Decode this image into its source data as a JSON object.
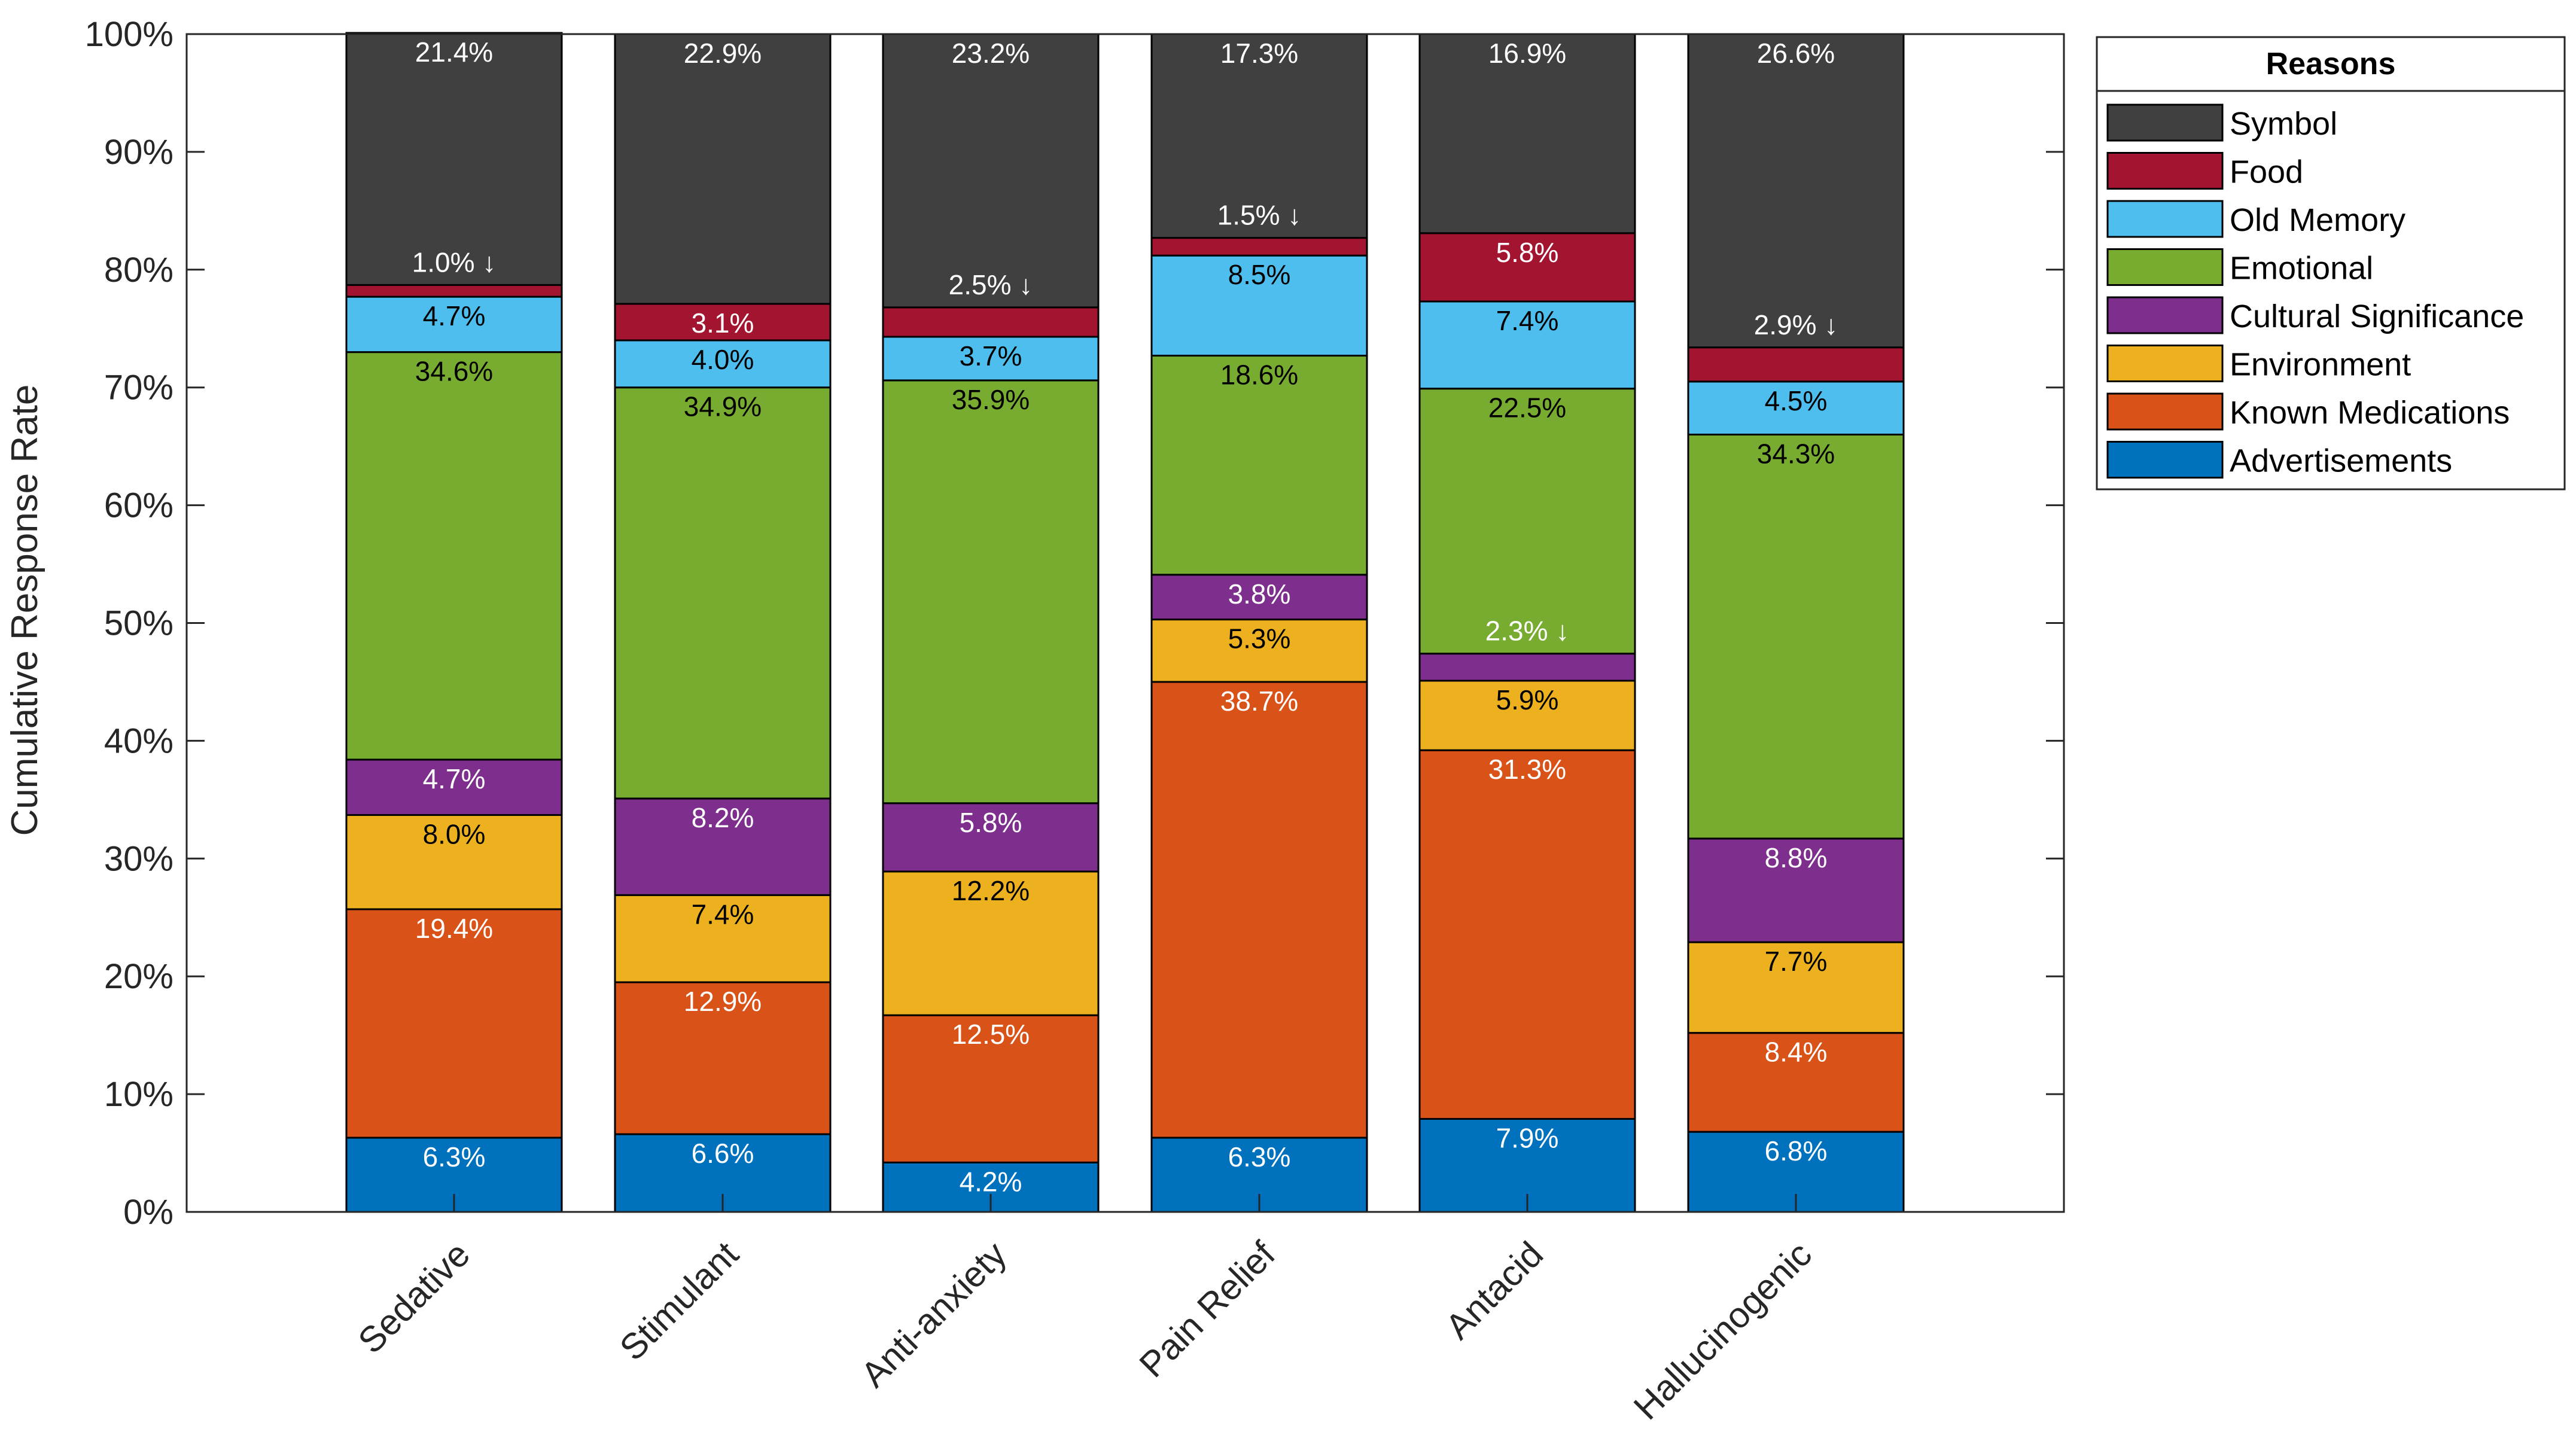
{
  "chart_data": {
    "type": "bar",
    "stacked": true,
    "title": "",
    "xlabel": "",
    "ylabel": "Cumulative Response Rate",
    "ylim": [
      0,
      100
    ],
    "yticks": [
      "0%",
      "10%",
      "20%",
      "30%",
      "40%",
      "50%",
      "60%",
      "70%",
      "80%",
      "90%",
      "100%"
    ],
    "categories": [
      "Sedative",
      "Stimulant",
      "Anti-anxiety",
      "Pain Relief",
      "Antacid",
      "Hallucinogenic"
    ],
    "legend": {
      "title": "Reasons",
      "position": "outside-top-right"
    },
    "series": [
      {
        "name": "Advertisements",
        "color": "#0072BD",
        "label_color": "#ffffff",
        "values": [
          6.3,
          6.6,
          4.2,
          6.3,
          7.9,
          6.8
        ],
        "labels": [
          "6.3%",
          "6.6%",
          "4.2%",
          "6.3%",
          "7.9%",
          "6.8%"
        ]
      },
      {
        "name": "Known Medications",
        "color": "#D95319",
        "label_color": "#ffffff",
        "values": [
          19.4,
          12.9,
          12.5,
          38.7,
          31.3,
          8.4
        ],
        "labels": [
          "19.4%",
          "12.9%",
          "12.5%",
          "38.7%",
          "31.3%",
          "8.4%"
        ]
      },
      {
        "name": "Environment",
        "color": "#EDB120",
        "label_color": "#000000",
        "values": [
          8.0,
          7.4,
          12.2,
          5.3,
          5.9,
          7.7
        ],
        "labels": [
          "8.0%",
          "7.4%",
          "12.2%",
          "5.3%",
          "5.9%",
          "7.7%"
        ]
      },
      {
        "name": "Cultural Significance",
        "color": "#7E2F8E",
        "label_color": "#ffffff",
        "values": [
          4.7,
          8.2,
          5.8,
          3.8,
          2.3,
          8.8
        ],
        "labels": [
          "4.7%",
          "8.2%",
          "5.8%",
          "3.8%",
          "2.3% ↓",
          "8.8%"
        ]
      },
      {
        "name": "Emotional",
        "color": "#77AC30",
        "label_color": "#000000",
        "values": [
          34.6,
          34.9,
          35.9,
          18.6,
          22.5,
          34.3
        ],
        "labels": [
          "34.6%",
          "34.9%",
          "35.9%",
          "18.6%",
          "22.5%",
          "34.3%"
        ]
      },
      {
        "name": "Old Memory",
        "color": "#4DBEEE",
        "label_color": "#000000",
        "values": [
          4.7,
          4.0,
          3.7,
          8.5,
          7.4,
          4.5
        ],
        "labels": [
          "4.7%",
          "4.0%",
          "3.7%",
          "8.5%",
          "7.4%",
          "4.5%"
        ]
      },
      {
        "name": "Food",
        "color": "#A2142F",
        "label_color": "#ffffff",
        "values": [
          1.0,
          3.1,
          2.5,
          1.5,
          5.8,
          2.9
        ],
        "labels": [
          "1.0% ↓",
          "3.1%",
          "2.5% ↓",
          "1.5% ↓",
          "5.8%",
          "2.9% ↓"
        ]
      },
      {
        "name": "Symbol",
        "color": "#404040",
        "label_color": "#ffffff",
        "values": [
          21.4,
          22.9,
          23.2,
          17.3,
          16.9,
          26.6
        ],
        "labels": [
          "21.4%",
          "22.9%",
          "23.2%",
          "17.3%",
          "16.9%",
          "26.6%"
        ]
      }
    ]
  }
}
